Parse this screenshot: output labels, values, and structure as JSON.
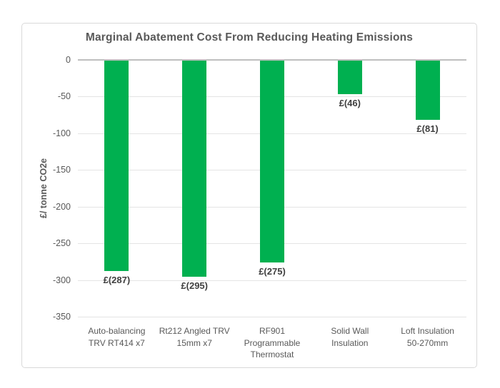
{
  "chart_data": {
    "type": "bar",
    "title": "Marginal Abatement Cost From Reducing Heating Emissions",
    "xlabel": "",
    "ylabel": "£/ tonne CO2e",
    "categories": [
      "Auto-balancing\nTRV RT414 x7",
      "Rt212 Angled TRV\n15mm x7",
      "RF901\nProgrammable\nThermostat",
      "Solid Wall\nInsulation",
      "Loft Insulation\n50-270mm"
    ],
    "values": [
      -287,
      -295,
      -275,
      -46,
      -81
    ],
    "data_labels": [
      "£(287)",
      "£(295)",
      "£(275)",
      "£(46)",
      "£(81)"
    ],
    "ytick_labels": [
      "0",
      "-50",
      "-100",
      "-150",
      "-200",
      "-250",
      "-300",
      "-350"
    ],
    "ylim": [
      -350,
      0
    ],
    "ytick_interval": 50,
    "grid": true,
    "legend_position": "none",
    "bar_color": "#00B050",
    "colors": {
      "title": "#595959",
      "axis_text": "#595959",
      "data_label": "#404040",
      "gridline": "#e4e4e4",
      "zero_line": "#bfbfbf",
      "frame_border": "#d9d9d9",
      "background": "#ffffff"
    }
  }
}
